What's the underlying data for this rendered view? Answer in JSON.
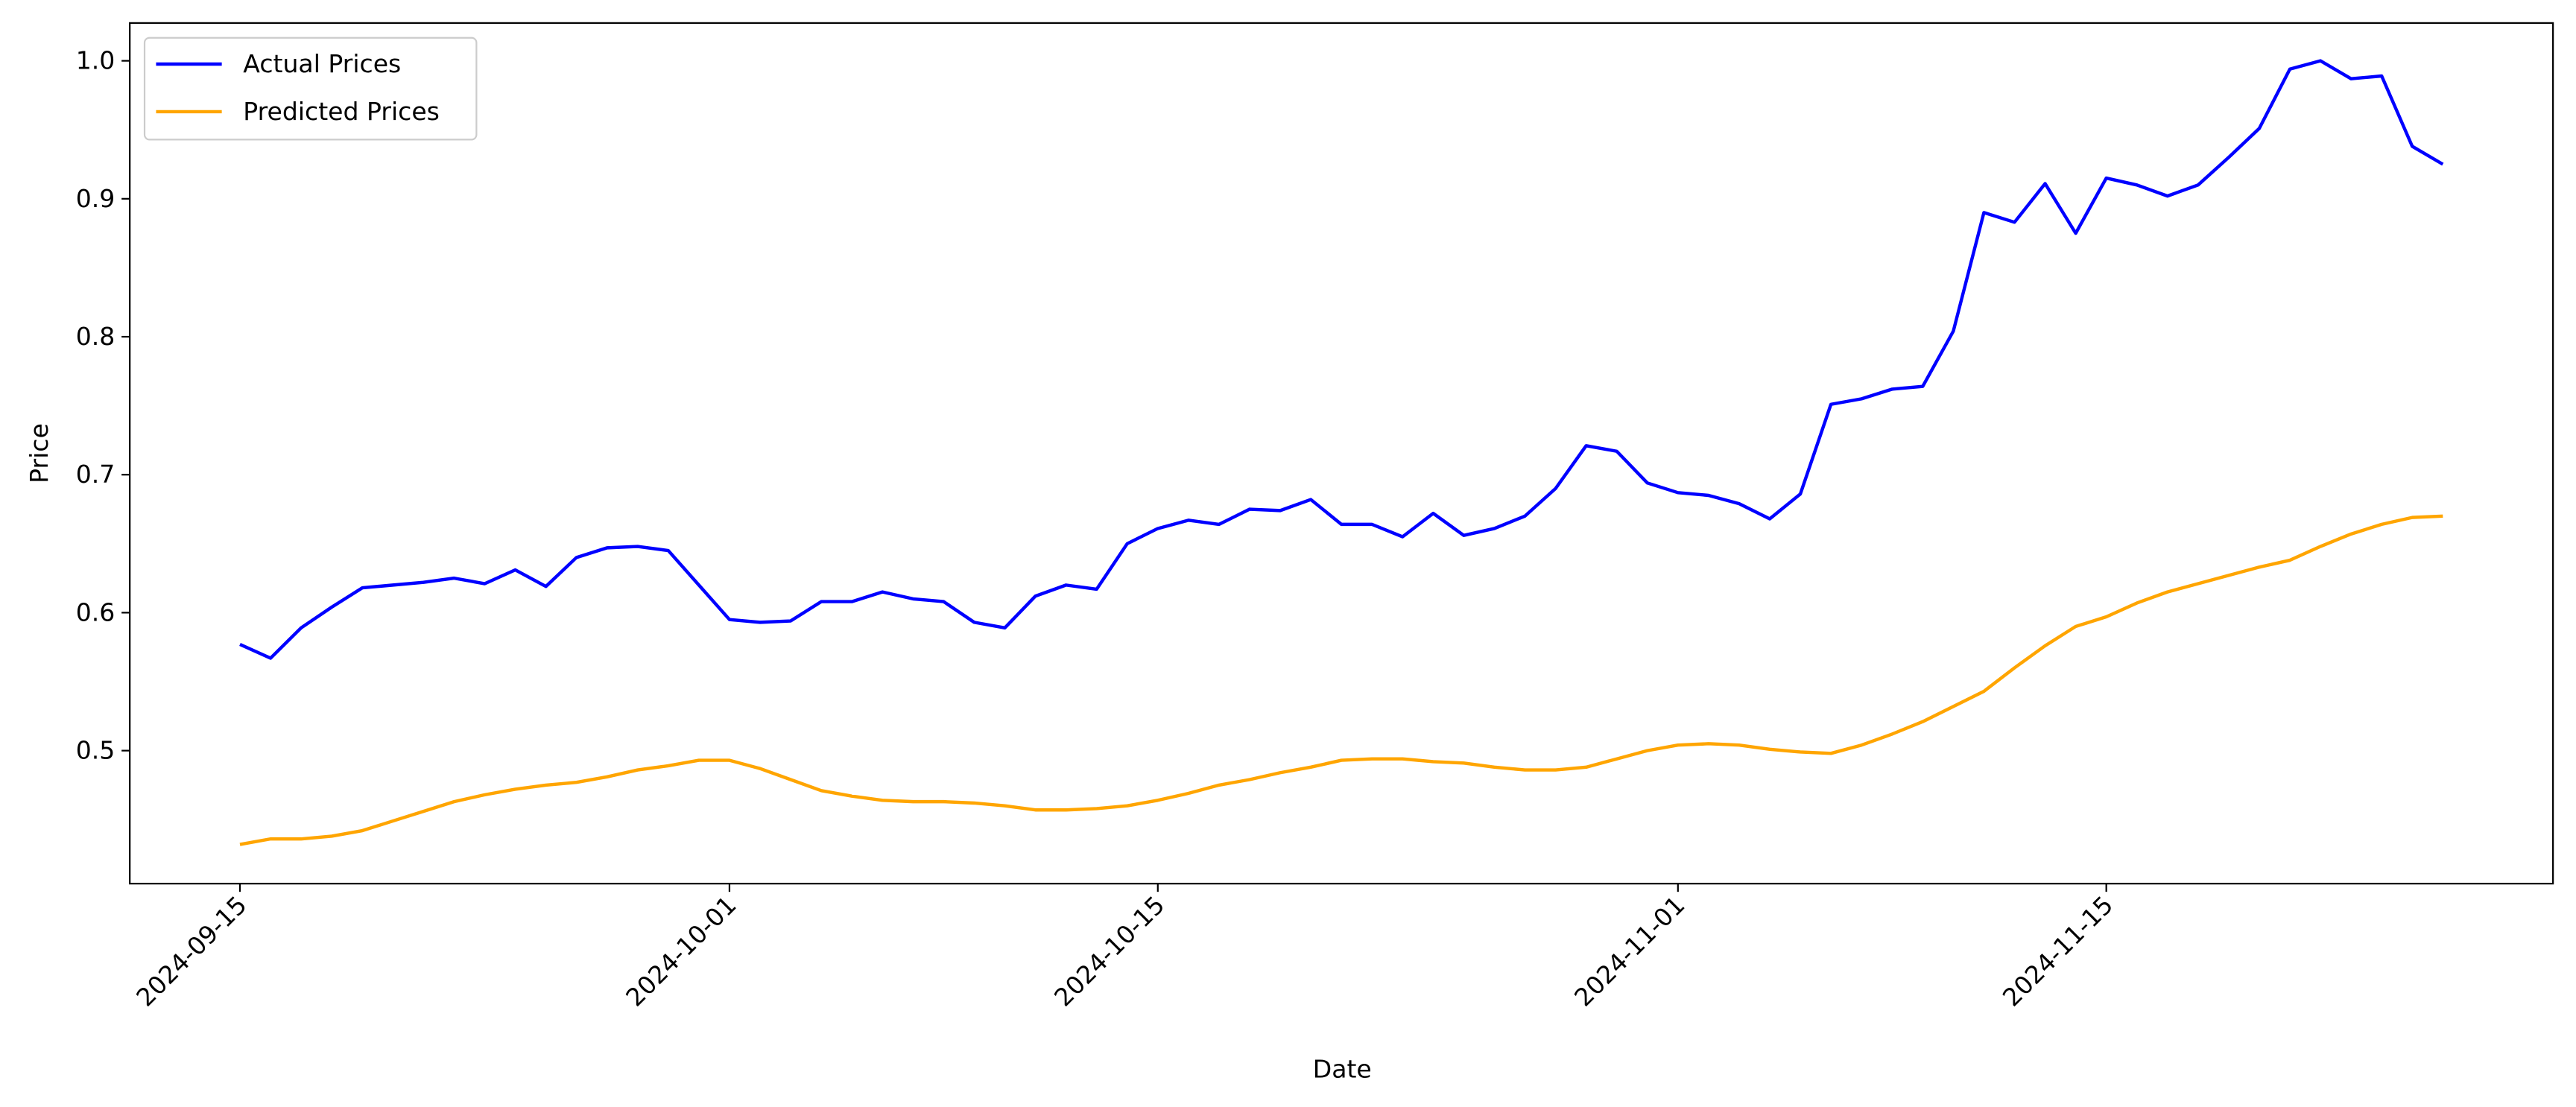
{
  "chart_data": {
    "type": "line",
    "xlabel": "Date",
    "ylabel": "Price",
    "x": [
      "2024-09-15",
      "2024-09-16",
      "2024-09-17",
      "2024-09-18",
      "2024-09-19",
      "2024-09-20",
      "2024-09-21",
      "2024-09-22",
      "2024-09-23",
      "2024-09-24",
      "2024-09-25",
      "2024-09-26",
      "2024-09-27",
      "2024-09-28",
      "2024-09-29",
      "2024-09-30",
      "2024-10-01",
      "2024-10-02",
      "2024-10-03",
      "2024-10-04",
      "2024-10-05",
      "2024-10-06",
      "2024-10-07",
      "2024-10-08",
      "2024-10-09",
      "2024-10-10",
      "2024-10-11",
      "2024-10-12",
      "2024-10-13",
      "2024-10-14",
      "2024-10-15",
      "2024-10-16",
      "2024-10-17",
      "2024-10-18",
      "2024-10-19",
      "2024-10-20",
      "2024-10-21",
      "2024-10-22",
      "2024-10-23",
      "2024-10-24",
      "2024-10-25",
      "2024-10-26",
      "2024-10-27",
      "2024-10-28",
      "2024-10-29",
      "2024-10-30",
      "2024-10-31",
      "2024-11-01",
      "2024-11-02",
      "2024-11-03",
      "2024-11-04",
      "2024-11-05",
      "2024-11-06",
      "2024-11-07",
      "2024-11-08",
      "2024-11-09",
      "2024-11-10",
      "2024-11-11",
      "2024-11-12",
      "2024-11-13",
      "2024-11-14",
      "2024-11-15",
      "2024-11-16",
      "2024-11-17",
      "2024-11-18",
      "2024-11-19",
      "2024-11-20",
      "2024-11-21",
      "2024-11-22",
      "2024-11-23",
      "2024-11-24",
      "2024-11-25",
      "2024-11-26"
    ],
    "series": [
      {
        "name": "Actual Prices",
        "color": "#0000ff",
        "values": [
          0.577,
          0.567,
          0.589,
          0.604,
          0.618,
          0.62,
          0.622,
          0.625,
          0.621,
          0.631,
          0.619,
          0.64,
          0.647,
          0.648,
          0.645,
          0.62,
          0.595,
          0.593,
          0.594,
          0.608,
          0.608,
          0.615,
          0.61,
          0.608,
          0.593,
          0.589,
          0.612,
          0.62,
          0.617,
          0.65,
          0.661,
          0.667,
          0.664,
          0.675,
          0.674,
          0.682,
          0.664,
          0.664,
          0.655,
          0.672,
          0.656,
          0.661,
          0.67,
          0.69,
          0.721,
          0.717,
          0.694,
          0.687,
          0.685,
          0.679,
          0.668,
          0.686,
          0.751,
          0.755,
          0.762,
          0.764,
          0.804,
          0.89,
          0.883,
          0.911,
          0.875,
          0.915,
          0.91,
          0.902,
          0.91,
          0.93,
          0.951,
          0.994,
          1.0,
          0.987,
          0.989,
          0.938,
          0.925
        ]
      },
      {
        "name": "Predicted Prices",
        "color": "#ffa500",
        "values": [
          0.432,
          0.436,
          0.436,
          0.438,
          0.442,
          0.449,
          0.456,
          0.463,
          0.468,
          0.472,
          0.475,
          0.477,
          0.481,
          0.486,
          0.489,
          0.493,
          0.493,
          0.487,
          0.479,
          0.471,
          0.467,
          0.464,
          0.463,
          0.463,
          0.462,
          0.46,
          0.457,
          0.457,
          0.458,
          0.46,
          0.464,
          0.469,
          0.475,
          0.479,
          0.484,
          0.488,
          0.493,
          0.494,
          0.494,
          0.492,
          0.491,
          0.488,
          0.486,
          0.486,
          0.488,
          0.494,
          0.5,
          0.504,
          0.505,
          0.504,
          0.501,
          0.499,
          0.498,
          0.504,
          0.512,
          0.521,
          0.532,
          0.543,
          0.56,
          0.576,
          0.59,
          0.597,
          0.607,
          0.615,
          0.621,
          0.627,
          0.633,
          0.638,
          0.648,
          0.657,
          0.664,
          0.669,
          0.67
        ]
      }
    ],
    "xlim": [
      "2024-09-11T09:36:00Z",
      "2024-11-29T14:24:00Z"
    ],
    "xticks": [
      "2024-09-15",
      "2024-10-01",
      "2024-10-15",
      "2024-11-01",
      "2024-11-15"
    ],
    "ylim": [
      0.4036,
      1.0274
    ],
    "yticks": [
      0.5,
      0.6,
      0.7,
      0.8,
      0.9,
      {
        "value": 1,
        "label": "1.0"
      }
    ],
    "legend": "upper left",
    "grid": false
  }
}
